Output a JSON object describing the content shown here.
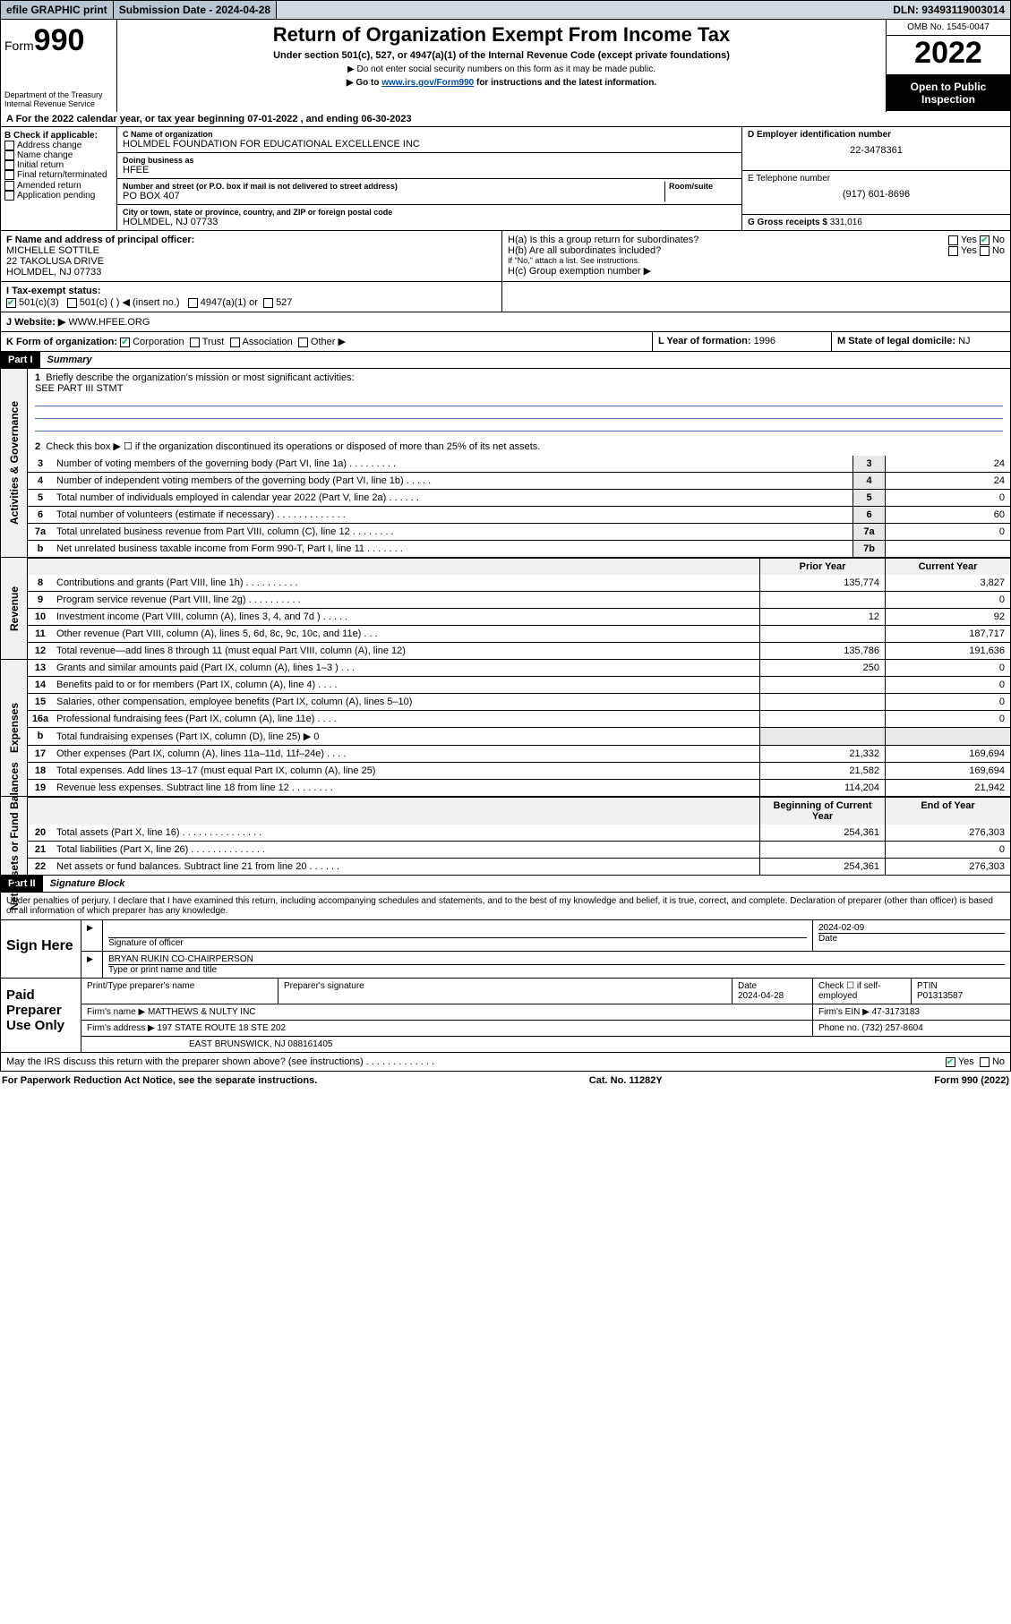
{
  "topbar": {
    "efile": "efile GRAPHIC print",
    "submission_label": "Submission Date - 2024-04-28",
    "dln": "DLN: 93493119003014"
  },
  "header": {
    "form_word": "Form",
    "form_num": "990",
    "title": "Return of Organization Exempt From Income Tax",
    "sub1": "Under section 501(c), 527, or 4947(a)(1) of the Internal Revenue Code (except private foundations)",
    "sub2": "▶ Do not enter social security numbers on this form as it may be made public.",
    "sub3_pre": "▶ Go to ",
    "sub3_link": "www.irs.gov/Form990",
    "sub3_post": " for instructions and the latest information.",
    "dept": "Department of the Treasury",
    "irs": "Internal Revenue Service",
    "omb": "OMB No. 1545-0047",
    "year": "2022",
    "inspection": "Open to Public Inspection"
  },
  "row_a": "A For the 2022 calendar year, or tax year beginning 07-01-2022    , and ending 06-30-2023",
  "col_b": {
    "label": "B Check if applicable:",
    "opts": [
      "Address change",
      "Name change",
      "Initial return",
      "Final return/terminated",
      "Amended return",
      "Application pending"
    ]
  },
  "col_c": {
    "name_lbl": "C Name of organization",
    "name": "HOLMDEL FOUNDATION FOR EDUCATIONAL EXCELLENCE INC",
    "dba_lbl": "Doing business as",
    "dba": "HFEE",
    "addr_lbl": "Number and street (or P.O. box if mail is not delivered to street address)",
    "room_lbl": "Room/suite",
    "addr": "PO BOX 407",
    "city_lbl": "City or town, state or province, country, and ZIP or foreign postal code",
    "city": "HOLMDEL, NJ  07733"
  },
  "col_d": {
    "ein_lbl": "D Employer identification number",
    "ein": "22-3478361"
  },
  "col_e": {
    "tel_lbl": "E Telephone number",
    "tel": "(917) 601-8696"
  },
  "col_g": {
    "gr_lbl": "G Gross receipts $",
    "gr": "331,016"
  },
  "col_f": {
    "lbl": "F Name and address of principal officer:",
    "name": "MICHELLE SOTTILE",
    "addr1": "22 TAKOLUSA DRIVE",
    "addr2": "HOLMDEL, NJ  07733"
  },
  "col_h": {
    "ha": "H(a)  Is this a group return for subordinates?",
    "hb": "H(b)  Are all subordinates included?",
    "yes": "Yes",
    "no": "No",
    "hb_note": "If \"No,\" attach a list. See instructions.",
    "hc": "H(c)  Group exemption number ▶"
  },
  "row_i": {
    "lbl": "I    Tax-exempt status:",
    "o1": "501(c)(3)",
    "o2": "501(c) (  ) ◀ (insert no.)",
    "o3": "4947(a)(1) or",
    "o4": "527"
  },
  "row_j": {
    "lbl": "J    Website: ▶",
    "val": "WWW.HFEE.ORG"
  },
  "row_k": {
    "lbl": "K Form of organization:",
    "o1": "Corporation",
    "o2": "Trust",
    "o3": "Association",
    "o4": "Other ▶"
  },
  "row_l": {
    "lbl": "L Year of formation:",
    "val": "1996"
  },
  "row_m": {
    "lbl": "M State of legal domicile:",
    "val": "NJ"
  },
  "part1": {
    "tag": "Part I",
    "title": "Summary",
    "q1": "Briefly describe the organization's mission or most significant activities:",
    "q1_val": "SEE PART III STMT",
    "q2": "Check this box ▶  ☐  if the organization discontinued its operations or disposed of more than 25% of its net assets.",
    "prior_hdr": "Prior Year",
    "curr_hdr": "Current Year",
    "beg_hdr": "Beginning of Current Year",
    "end_hdr": "End of Year",
    "lines_gov": [
      {
        "n": "3",
        "d": "Number of voting members of the governing body (Part VI, line 1a)   .   .   .   .   .   .   .   .   .",
        "box": "3",
        "v": "24"
      },
      {
        "n": "4",
        "d": "Number of independent voting members of the governing body (Part VI, line 1b)   .   .   .   .   .",
        "box": "4",
        "v": "24"
      },
      {
        "n": "5",
        "d": "Total number of individuals employed in calendar year 2022 (Part V, line 2a)   .   .   .   .   .   .",
        "box": "5",
        "v": "0"
      },
      {
        "n": "6",
        "d": "Total number of volunteers (estimate if necessary)   .   .   .   .   .   .   .   .   .   .   .   .   .",
        "box": "6",
        "v": "60"
      },
      {
        "n": "7a",
        "d": "Total unrelated business revenue from Part VIII, column (C), line 12   .   .   .   .   .   .   .   .",
        "box": "7a",
        "v": "0"
      },
      {
        "n": "b",
        "d": "Net unrelated business taxable income from Form 990-T, Part I, line 11   .   .   .   .   .   .   .",
        "box": "7b",
        "v": ""
      }
    ],
    "lines_rev": [
      {
        "n": "8",
        "d": "Contributions and grants (Part VIII, line 1h)   .   .   .   .   .   .   .   .   .   .",
        "p": "135,774",
        "c": "3,827"
      },
      {
        "n": "9",
        "d": "Program service revenue (Part VIII, line 2g)   .   .   .   .   .   .   .   .   .   .",
        "p": "",
        "c": "0"
      },
      {
        "n": "10",
        "d": "Investment income (Part VIII, column (A), lines 3, 4, and 7d )   .   .   .   .   .",
        "p": "12",
        "c": "92"
      },
      {
        "n": "11",
        "d": "Other revenue (Part VIII, column (A), lines 5, 6d, 8c, 9c, 10c, and 11e)   .   .   .",
        "p": "",
        "c": "187,717"
      },
      {
        "n": "12",
        "d": "Total revenue—add lines 8 through 11 (must equal Part VIII, column (A), line 12)",
        "p": "135,786",
        "c": "191,636"
      }
    ],
    "lines_exp": [
      {
        "n": "13",
        "d": "Grants and similar amounts paid (Part IX, column (A), lines 1–3 )   .   .   .",
        "p": "250",
        "c": "0"
      },
      {
        "n": "14",
        "d": "Benefits paid to or for members (Part IX, column (A), line 4)   .   .   .   .",
        "p": "",
        "c": "0"
      },
      {
        "n": "15",
        "d": "Salaries, other compensation, employee benefits (Part IX, column (A), lines 5–10)",
        "p": "",
        "c": "0"
      },
      {
        "n": "16a",
        "d": "Professional fundraising fees (Part IX, column (A), line 11e)   .   .   .   .",
        "p": "",
        "c": "0"
      },
      {
        "n": "b",
        "d": "Total fundraising expenses (Part IX, column (D), line 25) ▶ 0",
        "p": "‎",
        "c": "‎",
        "shade": true
      },
      {
        "n": "17",
        "d": "Other expenses (Part IX, column (A), lines 11a–11d, 11f–24e)   .   .   .   .",
        "p": "21,332",
        "c": "169,694"
      },
      {
        "n": "18",
        "d": "Total expenses. Add lines 13–17 (must equal Part IX, column (A), line 25)",
        "p": "21,582",
        "c": "169,694"
      },
      {
        "n": "19",
        "d": "Revenue less expenses. Subtract line 18 from line 12   .   .   .   .   .   .   .   .",
        "p": "114,204",
        "c": "21,942"
      }
    ],
    "lines_net": [
      {
        "n": "20",
        "d": "Total assets (Part X, line 16)   .   .   .   .   .   .   .   .   .   .   .   .   .   .   .",
        "p": "254,361",
        "c": "276,303"
      },
      {
        "n": "21",
        "d": "Total liabilities (Part X, line 26)   .   .   .   .   .   .   .   .   .   .   .   .   .   .",
        "p": "",
        "c": "0"
      },
      {
        "n": "22",
        "d": "Net assets or fund balances. Subtract line 21 from line 20   .   .   .   .   .   .",
        "p": "254,361",
        "c": "276,303"
      }
    ]
  },
  "part2": {
    "tag": "Part II",
    "title": "Signature Block",
    "decl": "Under penalties of perjury, I declare that I have examined this return, including accompanying schedules and statements, and to the best of my knowledge and belief, it is true, correct, and complete. Declaration of preparer (other than officer) is based on all information of which preparer has any knowledge."
  },
  "sign": {
    "left": "Sign Here",
    "sig_of_officer": "Signature of officer",
    "date": "2024-02-09",
    "date_lbl": "Date",
    "name": "BRYAN RUKIN  CO-CHAIRPERSON",
    "name_lbl": "Type or print name and title"
  },
  "paid": {
    "left": "Paid Preparer Use Only",
    "c1": "Print/Type preparer's name",
    "c2": "Preparer's signature",
    "c3": "Date",
    "c3v": "2024-04-28",
    "c4": "Check ☐ if self-employed",
    "c5": "PTIN",
    "c5v": "P01313587",
    "firm_name_lbl": "Firm's name    ▶",
    "firm_name": "MATTHEWS & NULTY INC",
    "firm_ein_lbl": "Firm's EIN ▶",
    "firm_ein": "47-3173183",
    "firm_addr_lbl": "Firm's address ▶",
    "firm_addr1": "197 STATE ROUTE 18 STE 202",
    "firm_addr2": "EAST BRUNSWICK, NJ  088161405",
    "phone_lbl": "Phone no.",
    "phone": "(732) 257-8604"
  },
  "may": {
    "q": "May the IRS discuss this return with the preparer shown above? (see instructions)   .   .   .   .   .   .   .   .   .   .   .   .   .",
    "yes": "Yes",
    "no": "No"
  },
  "footer": {
    "left": "For Paperwork Reduction Act Notice, see the separate instructions.",
    "mid": "Cat. No. 11282Y",
    "right": "Form 990 (2022)"
  },
  "vbar": {
    "gov": "Activities & Governance",
    "rev": "Revenue",
    "exp": "Expenses",
    "net": "Net Assets or Fund Balances"
  }
}
